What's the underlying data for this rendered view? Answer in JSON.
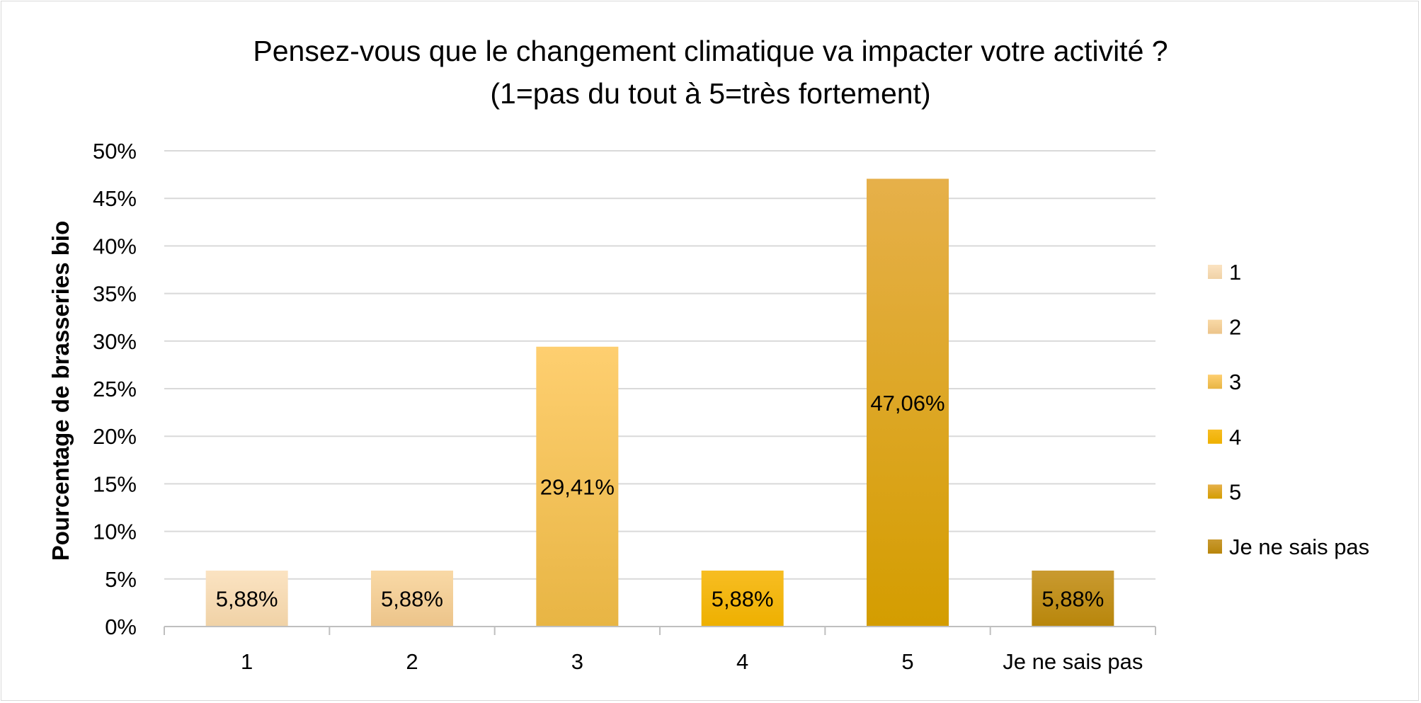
{
  "chart_data": {
    "type": "bar",
    "title": [
      "Pensez-vous que le changement climatique va impacter votre activité ?",
      "(1=pas du tout à 5=très fortement)"
    ],
    "ylabel": "Pourcentage de brasseries bio",
    "xlabel": "",
    "categories": [
      "1",
      "2",
      "3",
      "4",
      "5",
      "Je ne sais pas"
    ],
    "values": [
      5.88,
      5.88,
      29.41,
      5.88,
      47.06,
      5.88
    ],
    "data_labels": [
      "5,88%",
      "5,88%",
      "29,41%",
      "5,88%",
      "47,06%",
      "5,88%"
    ],
    "ylim": [
      0,
      50
    ],
    "yticks": [
      "0%",
      "5%",
      "10%",
      "15%",
      "20%",
      "25%",
      "30%",
      "35%",
      "40%",
      "45%",
      "50%"
    ],
    "grid": true,
    "legend": {
      "position": "right",
      "entries": [
        "1",
        "2",
        "3",
        "4",
        "5",
        "Je ne sais pas"
      ]
    },
    "colors": [
      [
        "#fbe3c2",
        "#f0d2a6"
      ],
      [
        "#f9d9a6",
        "#ecc48a"
      ],
      [
        "#fecf70",
        "#e8b544"
      ],
      [
        "#f7bd22",
        "#eeb000"
      ],
      [
        "#e6b04a",
        "#d49d00"
      ],
      [
        "#c99a30",
        "#b8860b"
      ]
    ]
  }
}
